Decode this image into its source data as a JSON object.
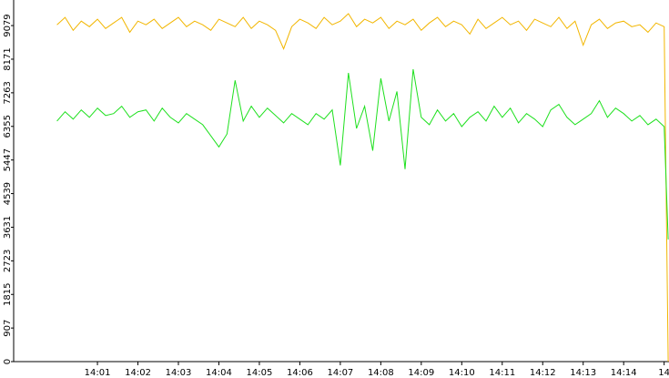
{
  "chart_data": {
    "type": "line",
    "x": [
      0,
      0.2,
      0.4,
      0.6,
      0.8,
      1,
      1.2,
      1.4,
      1.6,
      1.8,
      2,
      2.2,
      2.4,
      2.6,
      2.8,
      3,
      3.2,
      3.4,
      3.6,
      3.8,
      4,
      4.2,
      4.4,
      4.6,
      4.8,
      5,
      5.2,
      5.4,
      5.6,
      5.8,
      6,
      6.2,
      6.4,
      6.6,
      6.8,
      7,
      7.2,
      7.4,
      7.6,
      7.8,
      8,
      8.2,
      8.4,
      8.6,
      8.8,
      9,
      9.2,
      9.4,
      9.6,
      9.8,
      10,
      10.2,
      10.4,
      10.6,
      10.8,
      11,
      11.2,
      11.4,
      11.6,
      11.8,
      12,
      12.2,
      12.4,
      12.6,
      12.8,
      13,
      13.2,
      13.4,
      13.6,
      13.8,
      14,
      14.2,
      14.4,
      14.6,
      14.8,
      15,
      15.1
    ],
    "series": [
      {
        "color": "#f2b600",
        "values": [
          9100,
          9300,
          8950,
          9200,
          9050,
          9250,
          9000,
          9150,
          9300,
          8900,
          9200,
          9100,
          9250,
          9000,
          9150,
          9300,
          9050,
          9200,
          9100,
          8950,
          9250,
          9150,
          9050,
          9300,
          9000,
          9200,
          9100,
          8950,
          8450,
          9050,
          9250,
          9150,
          9000,
          9300,
          9100,
          9200,
          9400,
          9050,
          9250,
          9150,
          9300,
          9000,
          9200,
          9100,
          9250,
          8950,
          9150,
          9300,
          9050,
          9200,
          9100,
          8850,
          9250,
          9000,
          9150,
          9300,
          9100,
          9200,
          8950,
          9250,
          9150,
          9050,
          9300,
          9000,
          9200,
          8550,
          9100,
          9250,
          9000,
          9150,
          9200,
          9050,
          9100,
          8900,
          9150,
          9050,
          0
        ]
      },
      {
        "color": "#1ee01e",
        "values": [
          6500,
          6750,
          6550,
          6800,
          6600,
          6850,
          6650,
          6700,
          6900,
          6600,
          6750,
          6800,
          6500,
          6850,
          6600,
          6450,
          6700,
          6550,
          6400,
          6100,
          5800,
          6150,
          7600,
          6500,
          6900,
          6600,
          6850,
          6650,
          6450,
          6700,
          6550,
          6400,
          6700,
          6550,
          6800,
          5300,
          7800,
          6300,
          6900,
          5700,
          7650,
          6500,
          7300,
          5200,
          7900,
          6600,
          6400,
          6800,
          6500,
          6700,
          6350,
          6600,
          6750,
          6500,
          6900,
          6600,
          6850,
          6450,
          6700,
          6550,
          6350,
          6800,
          6950,
          6600,
          6400,
          6550,
          6700,
          7050,
          6600,
          6850,
          6700,
          6500,
          6650,
          6400,
          6550,
          6350,
          3300
        ]
      }
    ],
    "xlim": [
      -1.07,
      15.12
    ],
    "xticks": [
      {
        "value": 1,
        "label": "14:01"
      },
      {
        "value": 2,
        "label": "14:02"
      },
      {
        "value": 3,
        "label": "14:03"
      },
      {
        "value": 4,
        "label": "14:04"
      },
      {
        "value": 5,
        "label": "14:05"
      },
      {
        "value": 6,
        "label": "14:06"
      },
      {
        "value": 7,
        "label": "14:07"
      },
      {
        "value": 8,
        "label": "14:08"
      },
      {
        "value": 9,
        "label": "14:09"
      },
      {
        "value": 10,
        "label": "14:10"
      },
      {
        "value": 11,
        "label": "14:11"
      },
      {
        "value": 12,
        "label": "14:12"
      },
      {
        "value": 13,
        "label": "14:13"
      },
      {
        "value": 14,
        "label": "14:14"
      },
      {
        "value": 15,
        "label": "14"
      }
    ],
    "ylim": [
      0,
      9770
    ],
    "yticks": [
      0,
      907,
      1815,
      2723,
      3631,
      4539,
      5447,
      6355,
      7263,
      8171,
      9079
    ]
  }
}
